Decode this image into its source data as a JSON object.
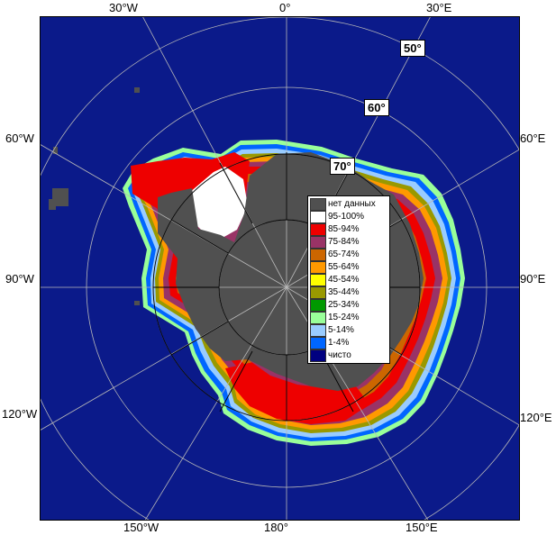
{
  "map": {
    "type": "south polar stereographic sea-ice concentration map",
    "colors": {
      "open_water": "#0b1a8a",
      "land_no_data": "#505050",
      "frame": "#000000",
      "graticule": "#b8b8b8"
    }
  },
  "longitude_labels": {
    "top": [
      "30°W",
      "0°",
      "30°E"
    ],
    "left": [
      "60°W",
      "90°W",
      "120°W"
    ],
    "right": [
      "60°E",
      "90°E",
      "120°E"
    ],
    "bottom": [
      "150°W",
      "180°",
      "150°E"
    ]
  },
  "latitude_labels": [
    "50°",
    "60°",
    "70°"
  ],
  "legend": {
    "items": [
      {
        "label": "нет данных",
        "color": "#505050"
      },
      {
        "label": "95-100%",
        "color": "#ffffff"
      },
      {
        "label": "85-94%",
        "color": "#ee0000"
      },
      {
        "label": "75-84%",
        "color": "#993366"
      },
      {
        "label": "65-74%",
        "color": "#cc6600"
      },
      {
        "label": "55-64%",
        "color": "#ff9900"
      },
      {
        "label": "45-54%",
        "color": "#ffff00"
      },
      {
        "label": "35-44%",
        "color": "#999900"
      },
      {
        "label": "25-34%",
        "color": "#009900"
      },
      {
        "label": "15-24%",
        "color": "#99ff99"
      },
      {
        "label": "5-14%",
        "color": "#99ccff"
      },
      {
        "label": "1-4%",
        "color": "#0066ff"
      },
      {
        "label": "чисто",
        "color": "#000080"
      }
    ]
  }
}
